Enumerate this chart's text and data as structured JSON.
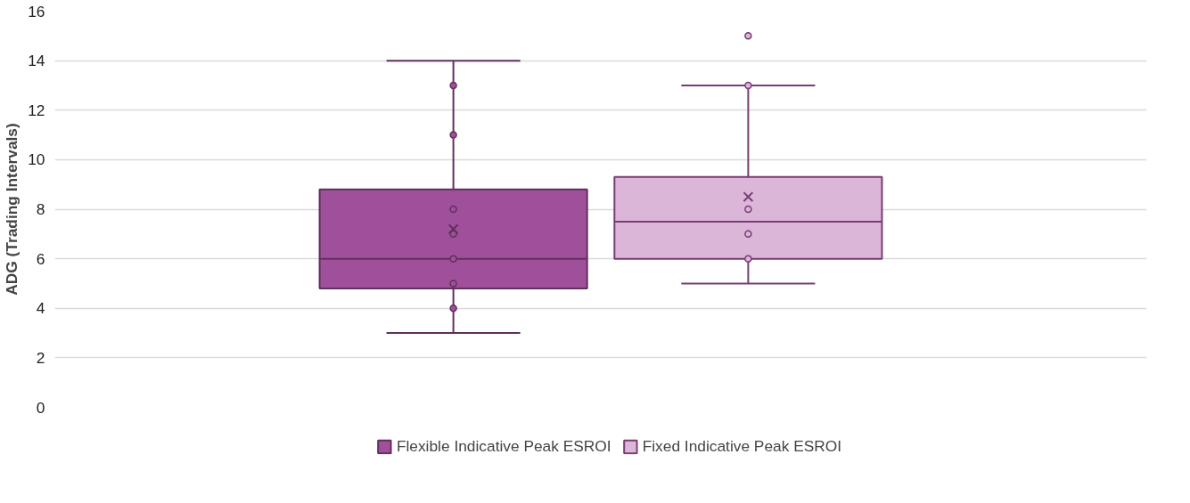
{
  "chart_data": {
    "type": "box",
    "categories": [
      null
    ],
    "ylabel": "ADG (Trading Intervals)",
    "ylim": [
      0,
      16
    ],
    "yticks": [
      0,
      2,
      4,
      6,
      8,
      10,
      12,
      14,
      16
    ],
    "grid": "y",
    "legend": "bottom",
    "tick_labels": "y",
    "series": [
      {
        "name": "Flexible Indicative Peak ESROI",
        "color": "#a0509a",
        "boxes": [
          {
            "low": 3,
            "q1": 4.8,
            "median": 6,
            "q3": 8.8,
            "high": 14,
            "mean": 7.2,
            "outliers": [
              13,
              11,
              8,
              7,
              6,
              5,
              4
            ]
          }
        ]
      },
      {
        "name": "Fixed Indicative Peak ESROI",
        "color": "#dbb6d8",
        "boxes": [
          {
            "low": 5,
            "q1": 6,
            "median": 7.5,
            "q3": 9.3,
            "high": 13,
            "mean": 8.5,
            "outliers": [
              15,
              13,
              8,
              7,
              6
            ]
          }
        ]
      }
    ]
  }
}
